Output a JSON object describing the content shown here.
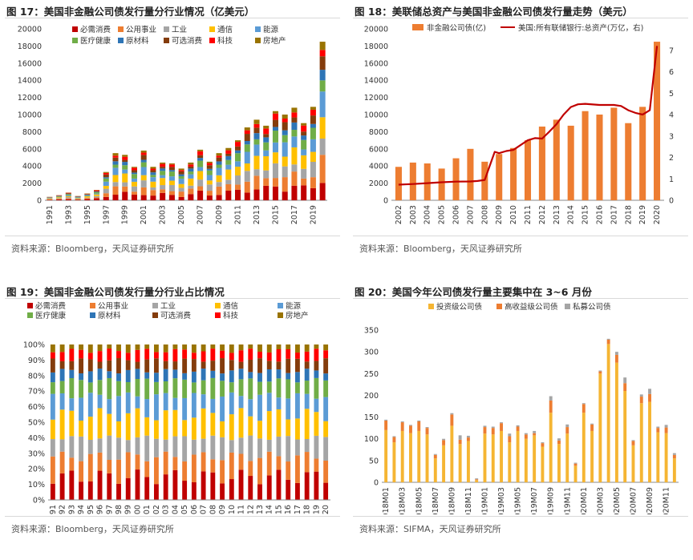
{
  "panels": [
    {
      "title": "图 17：美国非金融公司债发行量分行业情况（亿美元）",
      "source": "资料来源：Bloomberg，天风证券研究所"
    },
    {
      "title": "图 18：美联储总资产与美国非金融公司债发行量走势（美元）",
      "source": "资料来源：Bloomberg，天风证券研究所"
    },
    {
      "title": "图 19：美国非金融公司债发行量分行业占比情况",
      "source": "资料来源：Bloomberg，天风证券研究所"
    },
    {
      "title": "图 20：美国今年公司债发行量主要集中在 3~6 月份",
      "source": "资料来源：SIFMA，天风证券研究所"
    }
  ],
  "chart_data": [
    {
      "type": "bar",
      "stacked": true,
      "title": "图 17：美国非金融公司债发行量分行业情况（亿美元）",
      "ylim": [
        0,
        20000
      ],
      "yticks": [
        0,
        2000,
        4000,
        6000,
        8000,
        10000,
        12000,
        14000,
        16000,
        18000,
        20000
      ],
      "categories": [
        "1991",
        "1992",
        "1993",
        "1994",
        "1995",
        "1996",
        "1997",
        "1998",
        "1999",
        "2000",
        "2001",
        "2002",
        "2003",
        "2004",
        "2005",
        "2006",
        "2007",
        "2008",
        "2009",
        "2010",
        "2011",
        "2012",
        "2013",
        "2014",
        "2015",
        "2016",
        "2017",
        "2018",
        "2019",
        "2020"
      ],
      "xtick_labels": [
        "1991",
        "1993",
        "1995",
        "1997",
        "1999",
        "2001",
        "2003",
        "2005",
        "2007",
        "2009",
        "2011",
        "2013",
        "2015",
        "2017",
        "2019"
      ],
      "legend_position": "top",
      "totals": [
        400,
        600,
        900,
        500,
        800,
        1200,
        3300,
        5500,
        5300,
        3900,
        5800,
        3900,
        4400,
        4300,
        3700,
        4400,
        5900,
        4500,
        5500,
        6100,
        7000,
        8500,
        9400,
        8700,
        10400,
        10000,
        10800,
        9000,
        10900,
        18500
      ],
      "series": [
        {
          "name": "必需消费",
          "color": "#c00000"
        },
        {
          "name": "公用事业",
          "color": "#ed7d31"
        },
        {
          "name": "工业",
          "color": "#a5a5a5"
        },
        {
          "name": "通信",
          "color": "#ffc000"
        },
        {
          "name": "能源",
          "color": "#5b9bd5"
        },
        {
          "name": "医疗健康",
          "color": "#70ad47"
        },
        {
          "name": "原材料",
          "color": "#2e75b6"
        },
        {
          "name": "可选消费",
          "color": "#843c0c"
        },
        {
          "name": "科技",
          "color": "#ff0000"
        },
        {
          "name": "房地产",
          "color": "#997300"
        }
      ]
    },
    {
      "type": "bar+line",
      "title": "图 18：美联储总资产与美国非金融公司债发行量走势（美元）",
      "categories": [
        "2002",
        "2003",
        "2004",
        "2005",
        "2006",
        "2007",
        "2008",
        "2009",
        "2010",
        "2011",
        "2012",
        "2013",
        "2014",
        "2015",
        "2016",
        "2017",
        "2018",
        "2019",
        "2020"
      ],
      "ylim": [
        0,
        20000
      ],
      "yticks": [
        0,
        2000,
        4000,
        6000,
        8000,
        10000,
        12000,
        14000,
        16000,
        18000,
        20000
      ],
      "y2lim": [
        0,
        8
      ],
      "y2ticks": [
        0,
        1,
        2,
        3,
        4,
        5,
        6,
        7
      ],
      "legend_position": "top",
      "series": [
        {
          "name": "非金融公司债(亿)",
          "type": "bar",
          "axis": "left",
          "color": "#ed7d31",
          "values": [
            3900,
            4400,
            4300,
            3700,
            4900,
            6000,
            4500,
            5400,
            6100,
            7000,
            8600,
            9400,
            8700,
            10400,
            10000,
            10800,
            9000,
            10900,
            18500
          ]
        },
        {
          "name": "美国:所有联储银行:总资产(万亿，右)",
          "type": "line",
          "axis": "right",
          "color": "#c00000",
          "x": [
            2002,
            2003,
            2004,
            2005,
            2006,
            2007,
            2007.5,
            2008,
            2008.7,
            2009,
            2009.5,
            2010,
            2011,
            2011.5,
            2012,
            2012.5,
            2013,
            2013.5,
            2014,
            2014.5,
            2015,
            2016,
            2017,
            2017.5,
            2018,
            2018.5,
            2019,
            2019.5,
            2020
          ],
          "values": [
            0.73,
            0.76,
            0.8,
            0.84,
            0.87,
            0.88,
            0.9,
            0.95,
            2.26,
            2.2,
            2.3,
            2.35,
            2.8,
            2.9,
            2.88,
            3.2,
            3.55,
            4.0,
            4.35,
            4.48,
            4.5,
            4.45,
            4.45,
            4.4,
            4.2,
            4.08,
            4.0,
            4.2,
            7.2
          ]
        }
      ]
    },
    {
      "type": "bar",
      "stacked": true,
      "percent": true,
      "title": "图 19：美国非金融公司债发行量分行业占比情况",
      "ylim": [
        0,
        100
      ],
      "ytick_labels": [
        "0%",
        "10%",
        "20%",
        "30%",
        "40%",
        "50%",
        "60%",
        "70%",
        "80%",
        "90%",
        "100%"
      ],
      "categories": [
        "1991",
        "1992",
        "1993",
        "1994",
        "1995",
        "1996",
        "1997",
        "1998",
        "1999",
        "2000",
        "2001",
        "2002",
        "2003",
        "2004",
        "2005",
        "2006",
        "2007",
        "2008",
        "2009",
        "2010",
        "2011",
        "2012",
        "2013",
        "2014",
        "2015",
        "2016",
        "2017",
        "2018",
        "2019",
        "2020"
      ],
      "legend_position": "top",
      "series": [
        {
          "name": "必需消费",
          "color": "#c00000"
        },
        {
          "name": "公用事业",
          "color": "#ed7d31"
        },
        {
          "name": "工业",
          "color": "#a5a5a5"
        },
        {
          "name": "通信",
          "color": "#ffc000"
        },
        {
          "name": "能源",
          "color": "#5b9bd5"
        },
        {
          "name": "医疗健康",
          "color": "#70ad47"
        },
        {
          "name": "原材料",
          "color": "#2e75b6"
        },
        {
          "name": "可选消费",
          "color": "#843c0c"
        },
        {
          "name": "科技",
          "color": "#ff0000"
        },
        {
          "name": "房地产",
          "color": "#997300"
        }
      ]
    },
    {
      "type": "bar",
      "stacked": true,
      "title": "图 20：美国今年公司债发行量主要集中在 3~6 月份",
      "ylim": [
        0,
        350
      ],
      "yticks": [
        0,
        50,
        100,
        150,
        200,
        250,
        300,
        350
      ],
      "categories": [
        "2018M01",
        "2018M02",
        "2018M03",
        "2018M04",
        "2018M05",
        "2018M06",
        "2018M07",
        "2018M08",
        "2018M09",
        "2018M10",
        "2018M11",
        "2018M12",
        "2019M01",
        "2019M02",
        "2019M03",
        "2019M04",
        "2019M05",
        "2019M06",
        "2019M07",
        "2019M08",
        "2019M09",
        "2019M10",
        "2019M11",
        "2019M12",
        "2020M01",
        "2020M02",
        "2020M03",
        "2020M04",
        "2020M05",
        "2020M06",
        "2020M07",
        "2020M08",
        "2020M09",
        "2020M10",
        "2020M11",
        "2020M12"
      ],
      "xtick_labels": [
        "2018M01",
        "2018M03",
        "2018M05",
        "2018M07",
        "2018M09",
        "2018M11",
        "2019M01",
        "2019M03",
        "2019M05",
        "2019M07",
        "2019M09",
        "2019M11",
        "2020M01",
        "2020M03",
        "2020M05",
        "2020M07",
        "2020M09",
        "2020M11"
      ],
      "legend_position": "top",
      "series": [
        {
          "name": "投资级公司债",
          "color": "#f5b533",
          "values": [
            120,
            92,
            118,
            113,
            118,
            110,
            55,
            85,
            130,
            88,
            95,
            5,
            112,
            110,
            118,
            92,
            118,
            100,
            108,
            82,
            160,
            88,
            112,
            38,
            160,
            118,
            250,
            318,
            275,
            210,
            85,
            182,
            185,
            115,
            113,
            55
          ]
        },
        {
          "name": "高收益级公司债",
          "color": "#ed7d31",
          "values": [
            22,
            12,
            20,
            17,
            22,
            15,
            8,
            12,
            26,
            10,
            8,
            2,
            15,
            15,
            18,
            14,
            10,
            10,
            5,
            8,
            28,
            8,
            15,
            5,
            20,
            15,
            5,
            10,
            18,
            18,
            10,
            15,
            18,
            10,
            13,
            8
          ]
        },
        {
          "name": "私募公司债",
          "color": "#a5a5a5",
          "values": [
            2,
            2,
            2,
            2,
            2,
            2,
            2,
            3,
            3,
            10,
            4,
            2,
            3,
            3,
            2,
            6,
            3,
            3,
            5,
            2,
            10,
            5,
            6,
            2,
            2,
            2,
            2,
            2,
            7,
            13,
            2,
            5,
            12,
            3,
            6,
            4
          ]
        }
      ]
    }
  ]
}
